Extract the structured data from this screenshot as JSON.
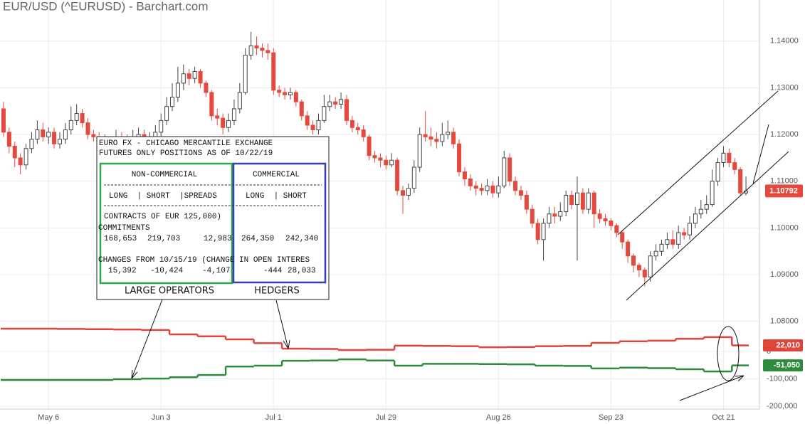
{
  "chart_data": [
    {
      "type": "candlestick",
      "title": "EUR/USD (^EURUSD) - Barchart.com",
      "categories": [
        null,
        null,
        null,
        null,
        null,
        null,
        null,
        null,
        "May 6",
        null,
        null,
        null,
        null,
        null,
        null,
        null,
        null,
        null,
        null,
        null,
        null,
        null,
        null,
        null,
        null,
        null,
        null,
        null,
        "Jun 3",
        null,
        null,
        null,
        null,
        null,
        null,
        null,
        null,
        null,
        null,
        null,
        null,
        null,
        null,
        null,
        null,
        null,
        null,
        null,
        "Jul 1",
        null,
        null,
        null,
        null,
        null,
        null,
        null,
        null,
        null,
        null,
        null,
        null,
        null,
        null,
        null,
        null,
        null,
        null,
        null,
        "Jul 29",
        null,
        null,
        null,
        null,
        null,
        null,
        null,
        null,
        null,
        null,
        null,
        null,
        null,
        null,
        null,
        null,
        null,
        null,
        null,
        "Aug 26",
        null,
        null,
        null,
        null,
        null,
        null,
        null,
        null,
        null,
        null,
        null,
        null,
        null,
        null,
        null,
        null,
        null,
        null,
        null,
        "Sep 23",
        null,
        null,
        null,
        null,
        null,
        null,
        null,
        null,
        null,
        null,
        null,
        null,
        null,
        null,
        null,
        null,
        null,
        null,
        null,
        "Oct 21",
        null,
        null,
        null,
        null
      ],
      "open": [
        1.1255,
        1.1205,
        1.1175,
        1.115,
        1.1135,
        1.117,
        1.119,
        1.121,
        1.1195,
        1.1205,
        1.118,
        1.119,
        1.121,
        1.123,
        1.1245,
        1.1225,
        1.12,
        1.1195,
        1.119,
        1.1185,
        1.118,
        1.1195,
        1.119,
        1.118,
        1.1195,
        1.12,
        1.119,
        1.1195,
        1.1205,
        1.123,
        1.126,
        1.128,
        1.131,
        1.133,
        1.132,
        1.1335,
        1.131,
        1.129,
        1.124,
        1.1235,
        1.1215,
        1.123,
        1.1255,
        1.129,
        1.137,
        1.139,
        1.1385,
        1.138,
        1.1375,
        1.1295,
        1.129,
        1.1285,
        1.129,
        1.127,
        1.124,
        1.122,
        1.121,
        1.123,
        1.126,
        1.127,
        1.1265,
        1.1275,
        1.123,
        1.1215,
        1.121,
        1.1195,
        1.1155,
        1.115,
        1.1145,
        1.1135,
        1.1145,
        1.108,
        1.107,
        1.1085,
        1.113,
        1.12,
        1.1195,
        1.119,
        1.1185,
        1.12,
        1.1205,
        1.118,
        1.112,
        1.1105,
        1.109,
        1.1085,
        1.108,
        1.109,
        1.1075,
        1.109,
        1.115,
        1.11,
        1.108,
        1.107,
        1.104,
        1.101,
        1.0975,
        1.101,
        1.103,
        1.1025,
        1.1035,
        1.107,
        1.105,
        1.1075,
        1.104,
        1.1075,
        1.103,
        1.102,
        1.1015,
        1.1005,
        1.099,
        1.097,
        1.094,
        1.092,
        1.091,
        1.0895,
        1.094,
        1.095,
        1.0965,
        1.0975,
        1.0965,
        1.099,
        1.0985,
        1.101,
        1.103,
        1.104,
        1.105,
        1.11,
        1.114,
        1.116,
        1.114,
        1.1125,
        1.1075
      ],
      "high": [
        1.127,
        1.1215,
        1.1185,
        1.116,
        1.118,
        1.1205,
        1.123,
        1.1225,
        1.1215,
        1.1215,
        1.1205,
        1.1225,
        1.126,
        1.1265,
        1.1255,
        1.1235,
        1.121,
        1.1205,
        1.12,
        1.1195,
        1.121,
        1.1205,
        1.12,
        1.121,
        1.1215,
        1.121,
        1.1205,
        1.122,
        1.1245,
        1.128,
        1.131,
        1.1345,
        1.135,
        1.134,
        1.1345,
        1.134,
        1.1315,
        1.1295,
        1.1255,
        1.1245,
        1.1245,
        1.1275,
        1.131,
        1.1385,
        1.142,
        1.141,
        1.1395,
        1.1395,
        1.1385,
        1.1305,
        1.13,
        1.13,
        1.1295,
        1.1275,
        1.125,
        1.123,
        1.1245,
        1.1285,
        1.1285,
        1.128,
        1.129,
        1.1285,
        1.124,
        1.1225,
        1.122,
        1.12,
        1.1165,
        1.116,
        1.1155,
        1.116,
        1.115,
        1.109,
        1.1095,
        1.1145,
        1.1215,
        1.125,
        1.1215,
        1.1205,
        1.1225,
        1.123,
        1.1215,
        1.119,
        1.113,
        1.1115,
        1.11,
        1.1095,
        1.1105,
        1.11,
        1.111,
        1.1165,
        1.116,
        1.111,
        1.109,
        1.108,
        1.105,
        1.102,
        1.102,
        1.1045,
        1.1045,
        1.1055,
        1.108,
        1.108,
        1.111,
        1.1085,
        1.1085,
        1.108,
        1.104,
        1.103,
        1.102,
        1.101,
        1.0995,
        1.0975,
        1.0945,
        1.0925,
        1.0915,
        1.095,
        1.0965,
        1.0975,
        1.099,
        1.0995,
        1.1005,
        1.1,
        1.1025,
        1.1045,
        1.106,
        1.107,
        1.1125,
        1.115,
        1.1175,
        1.117,
        1.115,
        1.113,
        1.111
      ],
      "low": [
        1.1195,
        1.116,
        1.113,
        1.1115,
        1.1125,
        1.116,
        1.118,
        1.1185,
        1.118,
        1.117,
        1.117,
        1.118,
        1.12,
        1.122,
        1.1215,
        1.119,
        1.1185,
        1.1175,
        1.1175,
        1.117,
        1.1175,
        1.118,
        1.117,
        1.1175,
        1.1185,
        1.118,
        1.118,
        1.119,
        1.1195,
        1.122,
        1.125,
        1.127,
        1.1295,
        1.1305,
        1.131,
        1.13,
        1.128,
        1.123,
        1.122,
        1.12,
        1.1205,
        1.122,
        1.1245,
        1.1285,
        1.136,
        1.137,
        1.1365,
        1.136,
        1.1285,
        1.128,
        1.1275,
        1.1275,
        1.126,
        1.123,
        1.121,
        1.12,
        1.12,
        1.1225,
        1.125,
        1.1255,
        1.1255,
        1.122,
        1.1205,
        1.12,
        1.1185,
        1.1145,
        1.114,
        1.113,
        1.1125,
        1.113,
        1.107,
        1.103,
        1.106,
        1.1075,
        1.112,
        1.1185,
        1.1175,
        1.117,
        1.1175,
        1.119,
        1.117,
        1.111,
        1.109,
        1.108,
        1.107,
        1.107,
        1.107,
        1.1065,
        1.1065,
        1.1085,
        1.109,
        1.107,
        1.106,
        1.103,
        1.1,
        1.0965,
        1.093,
        1.1,
        1.101,
        1.1015,
        1.1025,
        1.104,
        1.093,
        1.103,
        1.103,
        1.1,
        1.101,
        1.1005,
        1.0995,
        1.098,
        1.0955,
        1.0925,
        1.0905,
        1.0895,
        1.0875,
        1.0885,
        1.093,
        1.094,
        1.0955,
        1.0955,
        1.0955,
        1.0975,
        1.0975,
        1.1,
        1.102,
        1.103,
        1.1045,
        1.109,
        1.113,
        1.113,
        1.1115,
        1.107,
        1.107
      ],
      "close": [
        1.1205,
        1.1175,
        1.115,
        1.1135,
        1.117,
        1.119,
        1.121,
        1.1195,
        1.1205,
        1.118,
        1.119,
        1.121,
        1.123,
        1.1245,
        1.1225,
        1.12,
        1.1195,
        1.119,
        1.1185,
        1.118,
        1.1195,
        1.119,
        1.118,
        1.1195,
        1.12,
        1.119,
        1.1195,
        1.1205,
        1.123,
        1.126,
        1.128,
        1.131,
        1.133,
        1.132,
        1.1335,
        1.131,
        1.129,
        1.124,
        1.1235,
        1.1215,
        1.123,
        1.1255,
        1.129,
        1.137,
        1.139,
        1.1385,
        1.138,
        1.1375,
        1.1295,
        1.129,
        1.1285,
        1.129,
        1.127,
        1.124,
        1.122,
        1.121,
        1.123,
        1.126,
        1.127,
        1.1265,
        1.1275,
        1.123,
        1.1215,
        1.121,
        1.1195,
        1.1155,
        1.115,
        1.1145,
        1.1135,
        1.1145,
        1.108,
        1.107,
        1.1085,
        1.113,
        1.12,
        1.1195,
        1.119,
        1.1185,
        1.12,
        1.1205,
        1.118,
        1.112,
        1.1105,
        1.109,
        1.1085,
        1.108,
        1.109,
        1.1075,
        1.109,
        1.115,
        1.11,
        1.108,
        1.107,
        1.104,
        1.101,
        1.0975,
        1.101,
        1.103,
        1.1025,
        1.1035,
        1.107,
        1.105,
        1.1075,
        1.104,
        1.1075,
        1.103,
        1.102,
        1.1015,
        1.1005,
        1.099,
        1.097,
        1.094,
        1.092,
        1.091,
        1.0895,
        1.094,
        1.095,
        1.0965,
        1.0975,
        1.0965,
        1.099,
        1.0985,
        1.101,
        1.103,
        1.104,
        1.105,
        1.11,
        1.114,
        1.116,
        1.114,
        1.1125,
        1.1075,
        1.10792
      ],
      "up_color": "#444444",
      "down_color": "#e5483c",
      "tag_color": "#e5483c",
      "ylim": [
        1.0795,
        1.1488
      ],
      "yticks": [
        {
          "value": 1.08,
          "label": "1.08000"
        },
        {
          "value": 1.09,
          "label": "1.09000"
        },
        {
          "value": 1.1,
          "label": "1.10000"
        },
        {
          "value": 1.11,
          "label": "1.11000"
        },
        {
          "value": 1.12,
          "label": "1.12000"
        },
        {
          "value": 1.13,
          "label": "1.13000"
        },
        {
          "value": 1.14,
          "label": "1.14000"
        }
      ],
      "grid": true,
      "annotation": {
        "header": [
          "EURO FX - CHICAGO MERCANTILE EXCHANGE",
          "FUTURES ONLY POSITIONS AS OF 10/22/19"
        ],
        "groups": [
          "NON-COMMERCIAL",
          "COMMERCIAL"
        ],
        "columns": [
          "LONG  | SHORT  |SPREADS",
          "LONG  | SHORT"
        ],
        "units": "CONTRACTS OF EUR 125,000)",
        "commitments_label": "COMMITMENTS",
        "commitments": [
          "168,653",
          "219,703",
          "12,983",
          "264,350",
          "242,340"
        ],
        "changes_label": "CHANGES FROM 10/15/19 (CHANGE IN OPEN INTERES",
        "changes": [
          "15,392",
          "-10,424",
          "-4,107",
          "-444",
          "28,033"
        ],
        "captions": [
          "LARGE OPERATORS",
          "HEDGERS"
        ]
      }
    },
    {
      "type": "step",
      "series": [
        {
          "color": "#e0443a",
          "values": [
            83000,
            83000,
            82000,
            81000,
            80000,
            78000,
            62000,
            55000,
            44000,
            30000,
            10000,
            9000,
            5000,
            6000,
            21000,
            20000,
            19000,
            15000,
            16000,
            19000,
            20000,
            31000,
            37000,
            39000,
            46000,
            52000,
            22010
          ],
          "value_labels": [
            null,
            null,
            null,
            null,
            null,
            null,
            null,
            null,
            null,
            null,
            null,
            null,
            null,
            null,
            null,
            null,
            null,
            null,
            null,
            null,
            null,
            null,
            null,
            null,
            null,
            null,
            "22,010"
          ]
        },
        {
          "color": "#2e8b3e",
          "values": [
            -104000,
            -104000,
            -104000,
            -104000,
            -101000,
            -99000,
            -94000,
            -86000,
            -55000,
            -52000,
            -34000,
            -33000,
            -29000,
            -33000,
            -52000,
            -45000,
            -45000,
            -46000,
            -47000,
            -52000,
            -53000,
            -62000,
            -59000,
            -61000,
            -65000,
            -73000,
            -51050
          ],
          "value_labels": [
            null,
            null,
            null,
            null,
            null,
            null,
            null,
            null,
            null,
            null,
            null,
            null,
            null,
            null,
            null,
            null,
            null,
            null,
            null,
            null,
            null,
            null,
            null,
            null,
            null,
            null,
            "-51,050"
          ]
        }
      ],
      "ylim": [
        -210000,
        101000
      ],
      "yticks": [
        {
          "value": -200000,
          "label": "-200,000"
        },
        {
          "value": -100000,
          "label": "-100,000"
        },
        0
      ],
      "grid": true
    }
  ]
}
